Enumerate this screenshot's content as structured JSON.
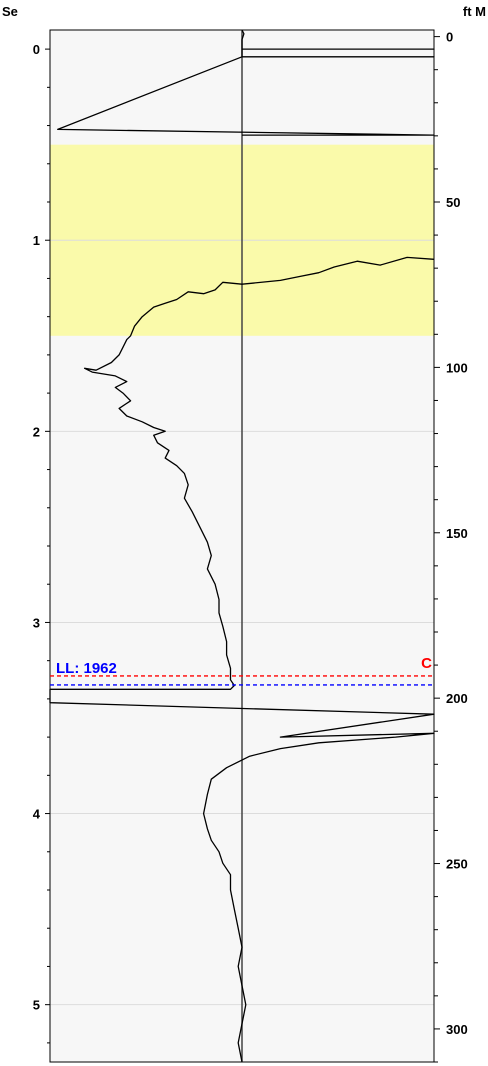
{
  "chart_data": {
    "type": "line",
    "title": "",
    "left_axis": {
      "label": "Se",
      "range": [
        -0.1,
        5.3
      ],
      "ticks": [
        "0",
        "1",
        "2",
        "3",
        "4",
        "5"
      ],
      "tick_values": [
        0,
        1,
        2,
        3,
        4,
        5
      ],
      "inverted": true
    },
    "right_axis": {
      "label": "ft M",
      "range": [
        -2,
        310
      ],
      "ticks": [
        "0",
        "50",
        "100",
        "150",
        "200",
        "250",
        "300"
      ],
      "tick_values": [
        0,
        50,
        100,
        150,
        200,
        250,
        300
      ],
      "inverted": true
    },
    "x_range": [
      0,
      1
    ],
    "center_line_x": 0.5,
    "highlight_band": {
      "from": 0.5,
      "to": 1.5,
      "color": "#fafaaa"
    },
    "markers": [
      {
        "label": "LL: 1962",
        "value": 3.28,
        "color": "#0000ff"
      },
      {
        "label": "C",
        "value": 3.28,
        "color": "#ff0000"
      }
    ],
    "series": [
      {
        "points": [
          [
            0.5,
            -0.1
          ],
          [
            0.505,
            -0.08
          ],
          [
            0.5,
            -0.05
          ],
          [
            0.5,
            0.0
          ],
          [
            1.0,
            0.0
          ],
          [
            0.5,
            0.0
          ],
          [
            0.5,
            0.04
          ],
          [
            1.0,
            0.04
          ],
          [
            0.5,
            0.04
          ],
          [
            0.02,
            0.42
          ],
          [
            1.0,
            0.45
          ],
          [
            0.5,
            0.45
          ]
        ]
      },
      {
        "points": [
          [
            1.0,
            1.1
          ],
          [
            0.93,
            1.09
          ],
          [
            0.86,
            1.13
          ],
          [
            0.8,
            1.11
          ],
          [
            0.74,
            1.14
          ],
          [
            0.7,
            1.17
          ],
          [
            0.65,
            1.19
          ],
          [
            0.6,
            1.21
          ],
          [
            0.5,
            1.23
          ],
          [
            0.45,
            1.22
          ],
          [
            0.43,
            1.26
          ],
          [
            0.4,
            1.28
          ],
          [
            0.36,
            1.27
          ],
          [
            0.33,
            1.31
          ],
          [
            0.3,
            1.33
          ],
          [
            0.27,
            1.35
          ],
          [
            0.24,
            1.4
          ],
          [
            0.22,
            1.45
          ],
          [
            0.21,
            1.5
          ],
          [
            0.2,
            1.52
          ],
          [
            0.19,
            1.56
          ],
          [
            0.18,
            1.6
          ],
          [
            0.16,
            1.64
          ],
          [
            0.12,
            1.68
          ],
          [
            0.09,
            1.67
          ],
          [
            0.11,
            1.69
          ],
          [
            0.17,
            1.71
          ],
          [
            0.2,
            1.74
          ],
          [
            0.17,
            1.77
          ],
          [
            0.19,
            1.8
          ],
          [
            0.21,
            1.84
          ],
          [
            0.18,
            1.88
          ],
          [
            0.2,
            1.92
          ],
          [
            0.24,
            1.95
          ],
          [
            0.27,
            1.98
          ],
          [
            0.3,
            2.0
          ],
          [
            0.27,
            2.02
          ],
          [
            0.28,
            2.06
          ],
          [
            0.31,
            2.1
          ],
          [
            0.3,
            2.14
          ],
          [
            0.33,
            2.18
          ],
          [
            0.35,
            2.22
          ],
          [
            0.36,
            2.28
          ],
          [
            0.35,
            2.35
          ],
          [
            0.37,
            2.42
          ],
          [
            0.39,
            2.5
          ],
          [
            0.41,
            2.58
          ],
          [
            0.42,
            2.65
          ],
          [
            0.41,
            2.72
          ],
          [
            0.43,
            2.8
          ],
          [
            0.44,
            2.88
          ],
          [
            0.44,
            2.95
          ],
          [
            0.45,
            3.02
          ],
          [
            0.46,
            3.1
          ],
          [
            0.46,
            3.17
          ],
          [
            0.47,
            3.24
          ],
          [
            0.47,
            3.3
          ],
          [
            0.48,
            3.33
          ],
          [
            0.47,
            3.35
          ],
          [
            0.0,
            3.35
          ],
          [
            0.0,
            3.42
          ],
          [
            1.0,
            3.48
          ],
          [
            0.6,
            3.6
          ],
          [
            1.0,
            3.58
          ],
          [
            0.9,
            3.6
          ],
          [
            0.7,
            3.63
          ],
          [
            0.6,
            3.66
          ],
          [
            0.52,
            3.7
          ],
          [
            0.46,
            3.76
          ],
          [
            0.42,
            3.82
          ],
          [
            0.41,
            3.9
          ],
          [
            0.4,
            4.0
          ],
          [
            0.41,
            4.08
          ],
          [
            0.42,
            4.14
          ],
          [
            0.44,
            4.2
          ],
          [
            0.45,
            4.26
          ],
          [
            0.47,
            4.32
          ],
          [
            0.47,
            4.4
          ],
          [
            0.48,
            4.5
          ],
          [
            0.49,
            4.6
          ],
          [
            0.5,
            4.7
          ],
          [
            0.49,
            4.8
          ],
          [
            0.5,
            4.9
          ],
          [
            0.51,
            5.0
          ],
          [
            0.5,
            5.1
          ],
          [
            0.49,
            5.2
          ],
          [
            0.5,
            5.3
          ]
        ]
      }
    ]
  }
}
